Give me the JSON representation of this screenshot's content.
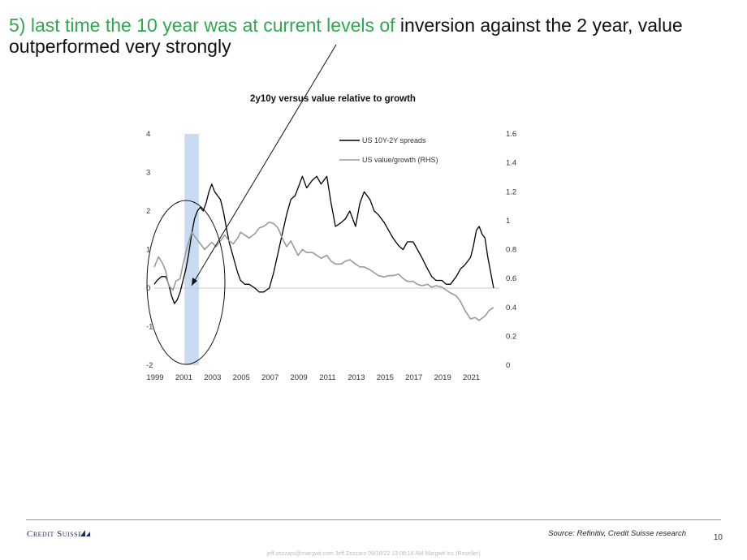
{
  "slide": {
    "title_green": "5) last time the 10 year was at current levels of",
    "title_black": " inversion against the 2 year, value outperformed very strongly",
    "source": "Source: Refinitiv, Credit Suisse research",
    "page_number": "10",
    "logo_text": "Credit Suisse",
    "watermark": "jeff.zezzaro@margwit.com Jeff Zezzaro 09/18/22 13:08:18 AM Margwit Inc.(Reseller)"
  },
  "chart_data": {
    "type": "line",
    "title": "2y10y versus value relative to growth",
    "x_range": [
      1999,
      2023
    ],
    "x_ticks": [
      "1999",
      "2001",
      "2003",
      "2005",
      "2007",
      "2009",
      "2011",
      "2013",
      "2015",
      "2017",
      "2019",
      "2021"
    ],
    "y_left": {
      "range": [
        -2,
        4
      ],
      "ticks": [
        "4",
        "3",
        "2",
        "1",
        "0",
        "-1",
        "-2"
      ]
    },
    "y_right": {
      "range": [
        0,
        1.6
      ],
      "ticks": [
        "1.6",
        "1.4",
        "1.2",
        "1",
        "0.8",
        "0.6",
        "0.4",
        "0.2",
        "0"
      ]
    },
    "legend": {
      "placement": "top-center",
      "entries": [
        "US 10Y-2Y spreads",
        "US value/growth (RHS)"
      ]
    },
    "highlight_band": {
      "x_from": 2001.1,
      "x_to": 2002.1,
      "color": "#c9dbf2"
    },
    "zero_line": 0,
    "series": [
      {
        "name": "US 10Y-2Y spreads",
        "axis": "left",
        "color": "#000000",
        "x": [
          1999.0,
          1999.2,
          1999.5,
          1999.8,
          2000.0,
          2000.2,
          2000.4,
          2000.6,
          2000.8,
          2001.0,
          2001.2,
          2001.4,
          2001.6,
          2001.8,
          2002.0,
          2002.2,
          2002.4,
          2002.6,
          2002.8,
          2003.0,
          2003.2,
          2003.4,
          2003.6,
          2003.8,
          2004.0,
          2004.2,
          2004.5,
          2004.8,
          2005.0,
          2005.3,
          2005.6,
          2006.0,
          2006.3,
          2006.6,
          2007.0,
          2007.3,
          2007.6,
          2007.9,
          2008.2,
          2008.5,
          2008.8,
          2009.0,
          2009.3,
          2009.6,
          2010.0,
          2010.3,
          2010.6,
          2011.0,
          2011.3,
          2011.6,
          2012.0,
          2012.3,
          2012.6,
          2013.0,
          2013.3,
          2013.6,
          2014.0,
          2014.3,
          2014.6,
          2015.0,
          2015.3,
          2015.6,
          2016.0,
          2016.3,
          2016.6,
          2017.0,
          2017.3,
          2017.6,
          2018.0,
          2018.3,
          2018.6,
          2019.0,
          2019.3,
          2019.6,
          2020.0,
          2020.3,
          2020.6,
          2021.0,
          2021.2,
          2021.4,
          2021.6,
          2021.8,
          2022.0,
          2022.2,
          2022.4,
          2022.6
        ],
        "values": [
          0.1,
          0.2,
          0.3,
          0.3,
          0.1,
          -0.2,
          -0.4,
          -0.3,
          -0.1,
          0.2,
          0.5,
          0.9,
          1.4,
          1.8,
          2.0,
          2.1,
          2.0,
          2.2,
          2.5,
          2.7,
          2.5,
          2.4,
          2.3,
          2.0,
          1.6,
          1.2,
          0.8,
          0.4,
          0.2,
          0.1,
          0.1,
          0.0,
          -0.1,
          -0.1,
          0.0,
          0.4,
          0.9,
          1.4,
          1.9,
          2.3,
          2.4,
          2.6,
          2.9,
          2.6,
          2.8,
          2.9,
          2.7,
          2.9,
          2.2,
          1.6,
          1.7,
          1.8,
          2.0,
          1.6,
          2.2,
          2.5,
          2.3,
          2.0,
          1.9,
          1.7,
          1.5,
          1.3,
          1.1,
          1.0,
          1.2,
          1.2,
          1.0,
          0.8,
          0.5,
          0.3,
          0.2,
          0.2,
          0.1,
          0.1,
          0.3,
          0.5,
          0.6,
          0.8,
          1.1,
          1.5,
          1.6,
          1.4,
          1.3,
          0.8,
          0.4,
          0.0
        ]
      },
      {
        "name": "US value/growth (RHS)",
        "axis": "right",
        "color": "#9a9a9a",
        "x": [
          1999.0,
          1999.3,
          1999.6,
          1999.8,
          2000.0,
          2000.3,
          2000.5,
          2000.8,
          2001.0,
          2001.3,
          2001.6,
          2001.9,
          2002.2,
          2002.5,
          2002.8,
          2003.0,
          2003.3,
          2003.6,
          2003.9,
          2004.2,
          2004.5,
          2004.8,
          2005.0,
          2005.3,
          2005.6,
          2006.0,
          2006.3,
          2006.6,
          2007.0,
          2007.3,
          2007.6,
          2007.9,
          2008.2,
          2008.5,
          2008.8,
          2009.0,
          2009.3,
          2009.6,
          2010.0,
          2010.3,
          2010.6,
          2011.0,
          2011.3,
          2011.6,
          2012.0,
          2012.3,
          2012.6,
          2013.0,
          2013.3,
          2013.6,
          2014.0,
          2014.3,
          2014.6,
          2015.0,
          2015.3,
          2015.6,
          2016.0,
          2016.3,
          2016.6,
          2017.0,
          2017.3,
          2017.6,
          2018.0,
          2018.3,
          2018.6,
          2019.0,
          2019.3,
          2019.6,
          2020.0,
          2020.3,
          2020.6,
          2021.0,
          2021.3,
          2021.6,
          2022.0,
          2022.3,
          2022.6
        ],
        "values": [
          0.68,
          0.75,
          0.7,
          0.65,
          0.55,
          0.52,
          0.58,
          0.6,
          0.7,
          0.82,
          0.92,
          0.88,
          0.84,
          0.8,
          0.83,
          0.85,
          0.82,
          0.86,
          0.9,
          0.86,
          0.84,
          0.88,
          0.92,
          0.9,
          0.88,
          0.91,
          0.95,
          0.96,
          0.99,
          0.98,
          0.95,
          0.88,
          0.82,
          0.86,
          0.8,
          0.76,
          0.8,
          0.78,
          0.78,
          0.76,
          0.74,
          0.76,
          0.72,
          0.7,
          0.7,
          0.72,
          0.73,
          0.7,
          0.68,
          0.68,
          0.66,
          0.64,
          0.62,
          0.61,
          0.62,
          0.62,
          0.63,
          0.6,
          0.58,
          0.58,
          0.56,
          0.55,
          0.56,
          0.54,
          0.55,
          0.54,
          0.52,
          0.5,
          0.48,
          0.44,
          0.38,
          0.32,
          0.33,
          0.31,
          0.34,
          0.38,
          0.4
        ]
      }
    ]
  }
}
